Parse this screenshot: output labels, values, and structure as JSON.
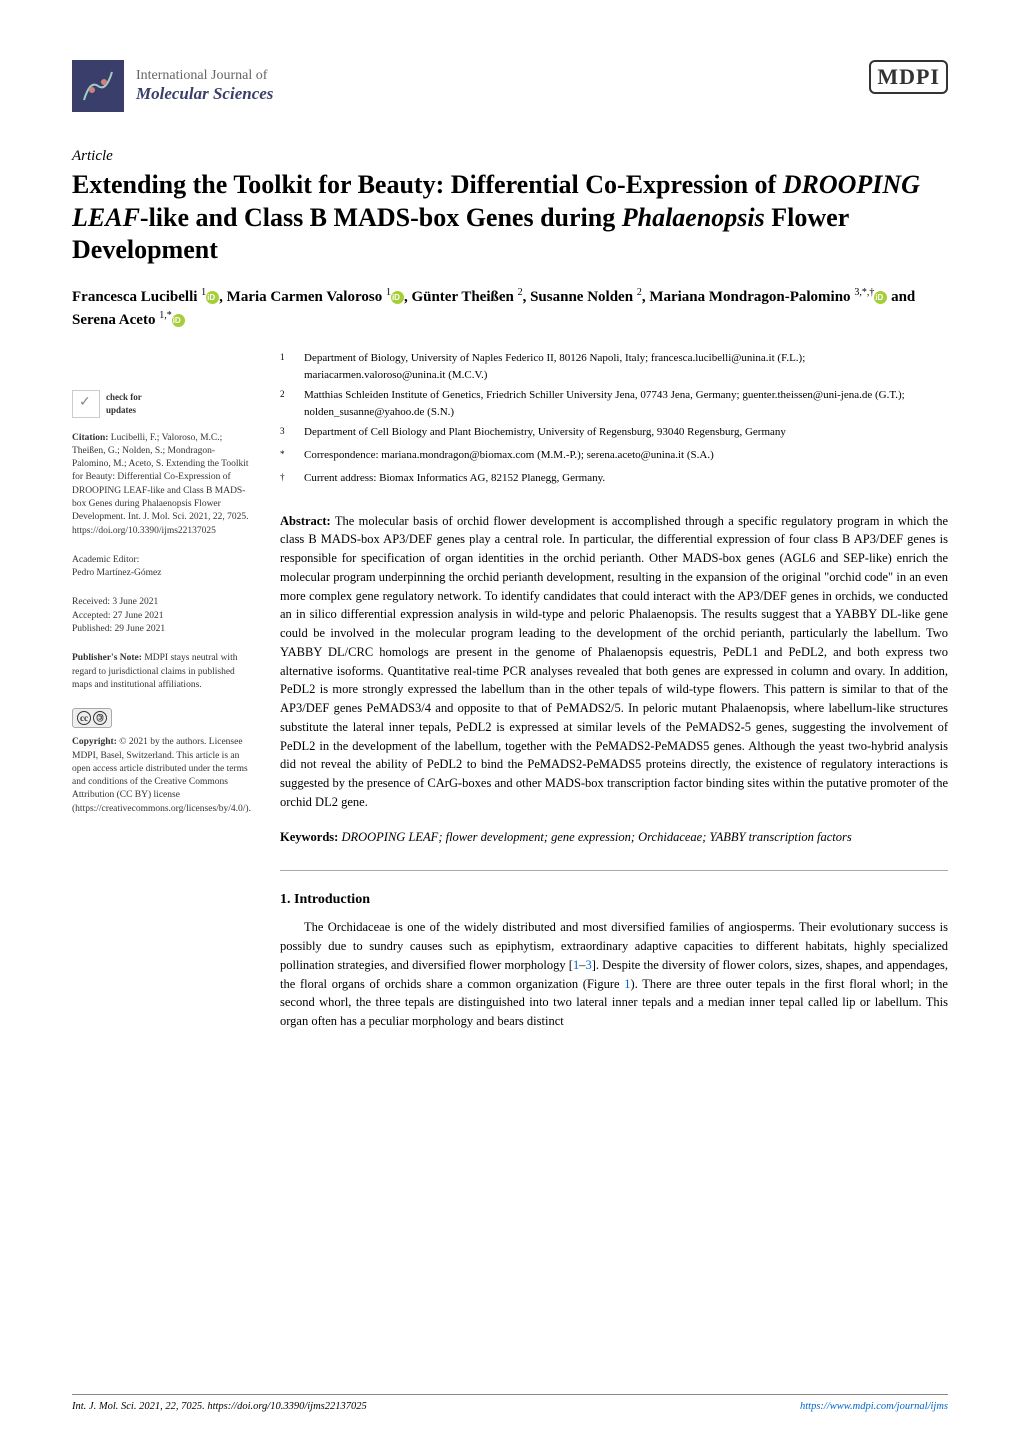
{
  "journal": {
    "line1": "International Journal of",
    "line2": "Molecular Sciences",
    "publisher_logo": "MDPI"
  },
  "article": {
    "type": "Article",
    "title_parts": {
      "p1": "Extending the Toolkit for Beauty: Differential Co-Expression of ",
      "p2_italic": "DROOPING LEAF",
      "p3": "-like and Class B MADS-box Genes during ",
      "p4_italic": "Phalaenopsis",
      "p5": " Flower Development"
    },
    "authors_html": "Francesca Lucibelli <sup>1</sup><span class='orcid'></span>, Maria Carmen Valoroso <sup>1</sup><span class='orcid'></span>, Günter Theißen <sup>2</sup>, Susanne Nolden <sup>2</sup>, Mariana Mondragon-Palomino <sup>3,*,†</sup><span class='orcid'></span> and Serena Aceto <sup>1,*</sup><span class='orcid'></span>"
  },
  "affiliations": [
    {
      "num": "1",
      "text": "Department of Biology, University of Naples Federico II, 80126 Napoli, Italy; francesca.lucibelli@unina.it (F.L.); mariacarmen.valoroso@unina.it (M.C.V.)"
    },
    {
      "num": "2",
      "text": "Matthias Schleiden Institute of Genetics, Friedrich Schiller University Jena, 07743 Jena, Germany; guenter.theissen@uni-jena.de (G.T.); nolden_susanne@yahoo.de (S.N.)"
    },
    {
      "num": "3",
      "text": "Department of Cell Biology and Plant Biochemistry, University of Regensburg, 93040 Regensburg, Germany"
    },
    {
      "num": "*",
      "text": "Correspondence: mariana.mondragon@biomax.com (M.M.-P.); serena.aceto@unina.it (S.A.)"
    },
    {
      "num": "†",
      "text": "Current address: Biomax Informatics AG, 82152 Planegg, Germany."
    }
  ],
  "sidebar": {
    "check_updates": "check for\nupdates",
    "citation_label": "Citation:",
    "citation": "Lucibelli, F.; Valoroso, M.C.; Theißen, G.; Nolden, S.; Mondragon-Palomino, M.; Aceto, S. Extending the Toolkit for Beauty: Differential Co-Expression of DROOPING LEAF-like and Class B MADS-box Genes during Phalaenopsis Flower Development. Int. J. Mol. Sci. 2021, 22, 7025. https://doi.org/10.3390/ijms22137025",
    "editor_label": "Academic Editor:",
    "editor": "Pedro Martínez-Gómez",
    "received_label": "Received:",
    "received": "3 June 2021",
    "accepted_label": "Accepted:",
    "accepted": "27 June 2021",
    "published_label": "Published:",
    "published": "29 June 2021",
    "publisher_note_label": "Publisher's Note:",
    "publisher_note": "MDPI stays neutral with regard to jurisdictional claims in published maps and institutional affiliations.",
    "copyright_label": "Copyright:",
    "copyright": "© 2021 by the authors. Licensee MDPI, Basel, Switzerland. This article is an open access article distributed under the terms and conditions of the Creative Commons Attribution (CC BY) license (https://creativecommons.org/licenses/by/4.0/)."
  },
  "abstract": {
    "label": "Abstract:",
    "text": "The molecular basis of orchid flower development is accomplished through a specific regulatory program in which the class B MADS-box AP3/DEF genes play a central role. In particular, the differential expression of four class B AP3/DEF genes is responsible for specification of organ identities in the orchid perianth. Other MADS-box genes (AGL6 and SEP-like) enrich the molecular program underpinning the orchid perianth development, resulting in the expansion of the original \"orchid code\" in an even more complex gene regulatory network. To identify candidates that could interact with the AP3/DEF genes in orchids, we conducted an in silico differential expression analysis in wild-type and peloric Phalaenopsis. The results suggest that a YABBY DL-like gene could be involved in the molecular program leading to the development of the orchid perianth, particularly the labellum. Two YABBY DL/CRC homologs are present in the genome of Phalaenopsis equestris, PeDL1 and PeDL2, and both express two alternative isoforms. Quantitative real-time PCR analyses revealed that both genes are expressed in column and ovary. In addition, PeDL2 is more strongly expressed the labellum than in the other tepals of wild-type flowers. This pattern is similar to that of the AP3/DEF genes PeMADS3/4 and opposite to that of PeMADS2/5. In peloric mutant Phalaenopsis, where labellum-like structures substitute the lateral inner tepals, PeDL2 is expressed at similar levels of the PeMADS2-5 genes, suggesting the involvement of PeDL2 in the development of the labellum, together with the PeMADS2-PeMADS5 genes. Although the yeast two-hybrid analysis did not reveal the ability of PeDL2 to bind the PeMADS2-PeMADS5 proteins directly, the existence of regulatory interactions is suggested by the presence of CArG-boxes and other MADS-box transcription factor binding sites within the putative promoter of the orchid DL2 gene."
  },
  "keywords": {
    "label": "Keywords:",
    "text": "DROOPING LEAF; flower development; gene expression; Orchidaceae; YABBY transcription factors"
  },
  "intro": {
    "heading": "1. Introduction",
    "body": "The Orchidaceae is one of the widely distributed and most diversified families of angiosperms. Their evolutionary success is possibly due to sundry causes such as epiphytism, extraordinary adaptive capacities to different habitats, highly specialized pollination strategies, and diversified flower morphology [1–3]. Despite the diversity of flower colors, sizes, shapes, and appendages, the floral organs of orchids share a common organization (Figure 1). There are three outer tepals in the first floral whorl; in the second whorl, the three tepals are distinguished into two lateral inner tepals and a median inner tepal called lip or labellum. This organ often has a peculiar morphology and bears distinct"
  },
  "footer": {
    "left": "Int. J. Mol. Sci. 2021, 22, 7025. https://doi.org/10.3390/ijms22137025",
    "right": "https://www.mdpi.com/journal/ijms"
  },
  "colors": {
    "journal_icon_bg": "#3a3e6b",
    "link": "#0066cc",
    "orcid": "#a6ce39"
  }
}
